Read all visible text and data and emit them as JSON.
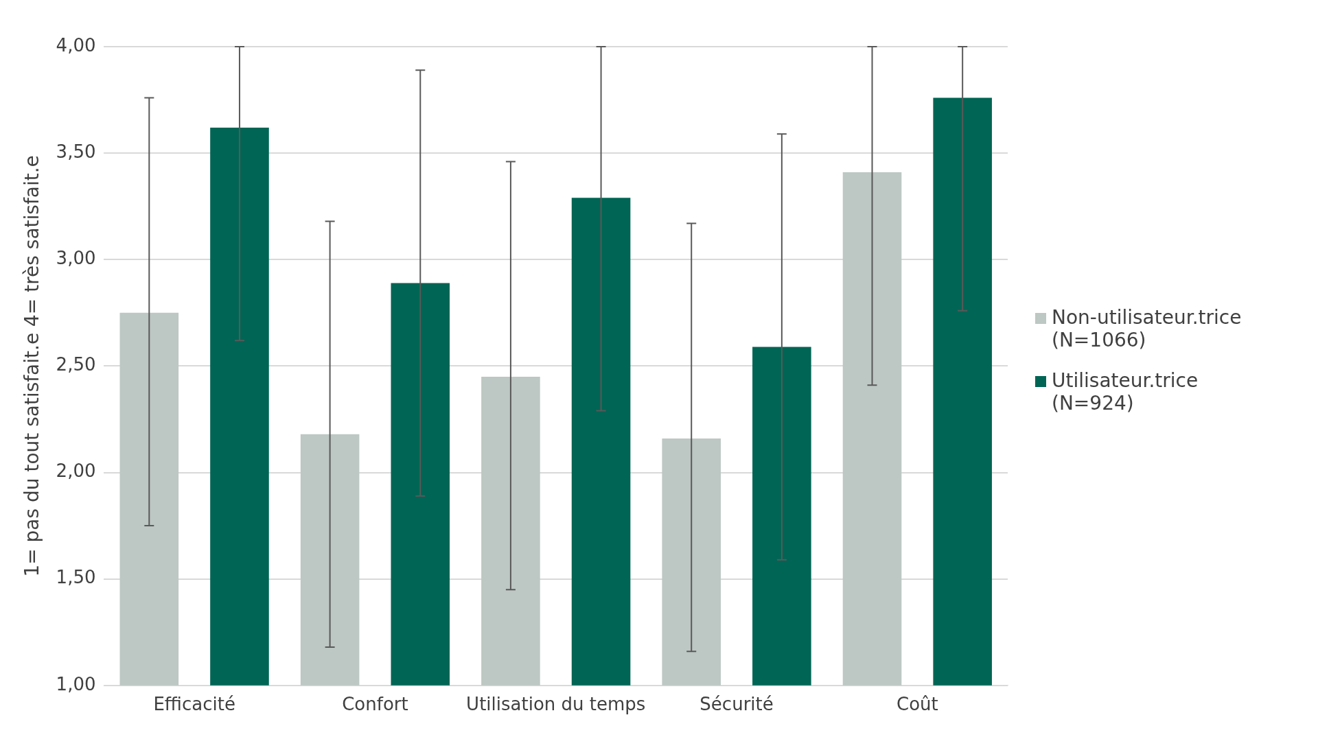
{
  "chart_data": {
    "type": "bar",
    "ylabel": "1= pas du tout satisfait.e 4= très satisfait.e",
    "categories": [
      "Efficacité",
      "Confort",
      "Utilisation du temps",
      "Sécurité",
      "Coût"
    ],
    "series": [
      {
        "name": "Non-utilisateur.trice (N=1066)",
        "color": "#bdc7c3",
        "values": [
          2.75,
          2.18,
          2.45,
          2.16,
          3.41
        ],
        "errors": [
          [
            1.75,
            3.76
          ],
          [
            1.18,
            3.18
          ],
          [
            1.45,
            3.46
          ],
          [
            1.16,
            3.17
          ],
          [
            2.41,
            4.0
          ]
        ]
      },
      {
        "name": "Utilisateur.trice (N=924)",
        "color": "#006554",
        "values": [
          3.62,
          2.89,
          3.29,
          2.59,
          3.76
        ],
        "errors": [
          [
            2.62,
            4.0
          ],
          [
            1.89,
            3.89
          ],
          [
            2.29,
            4.0
          ],
          [
            1.59,
            3.59
          ],
          [
            2.76,
            4.0
          ]
        ]
      }
    ],
    "ylim": [
      1,
      4
    ],
    "yticks": [
      {
        "value": 1,
        "label": "1,00"
      },
      {
        "value": 1.5,
        "label": "1,50"
      },
      {
        "value": 2,
        "label": "2,00"
      },
      {
        "value": 2.5,
        "label": "2,50"
      },
      {
        "value": 3,
        "label": "3,00"
      },
      {
        "value": 3.5,
        "label": "3,50"
      },
      {
        "value": 4,
        "label": "4,00"
      }
    ],
    "grid": "y",
    "legend": "right"
  }
}
